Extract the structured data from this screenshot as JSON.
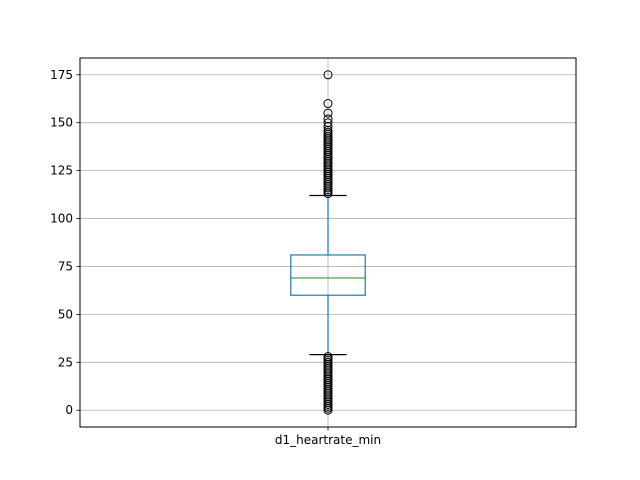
{
  "chart_data": {
    "type": "box",
    "categories": [
      "d1_heartrate_min"
    ],
    "ylim": [
      -8.75,
      183.75
    ],
    "yticks": [
      0,
      25,
      50,
      75,
      100,
      125,
      150,
      175
    ],
    "grid": true,
    "boxes": [
      {
        "label": "d1_heartrate_min",
        "whisker_low": 29,
        "q1": 60,
        "median": 69,
        "q3": 81,
        "whisker_high": 112,
        "outliers_low": [
          0,
          1,
          2,
          3,
          4,
          5,
          6,
          7,
          8,
          9,
          10,
          11,
          12,
          13,
          14,
          15,
          16,
          17,
          18,
          19,
          20,
          21,
          22,
          23,
          24,
          25,
          26,
          27,
          28
        ],
        "outliers_high": [
          113,
          114,
          115,
          116,
          117,
          118,
          119,
          120,
          121,
          122,
          123,
          124,
          125,
          126,
          127,
          128,
          129,
          130,
          131,
          132,
          133,
          134,
          135,
          136,
          137,
          138,
          139,
          140,
          141,
          142,
          143,
          144,
          145,
          146,
          148,
          150,
          152,
          155,
          160,
          175
        ]
      }
    ],
    "colors": {
      "box": "#1f77b4",
      "median": "#2ca02c",
      "whisker": "#1f77b4",
      "cap": "#000000",
      "outlier": "#000000",
      "grid": "#b0b0b0"
    }
  }
}
